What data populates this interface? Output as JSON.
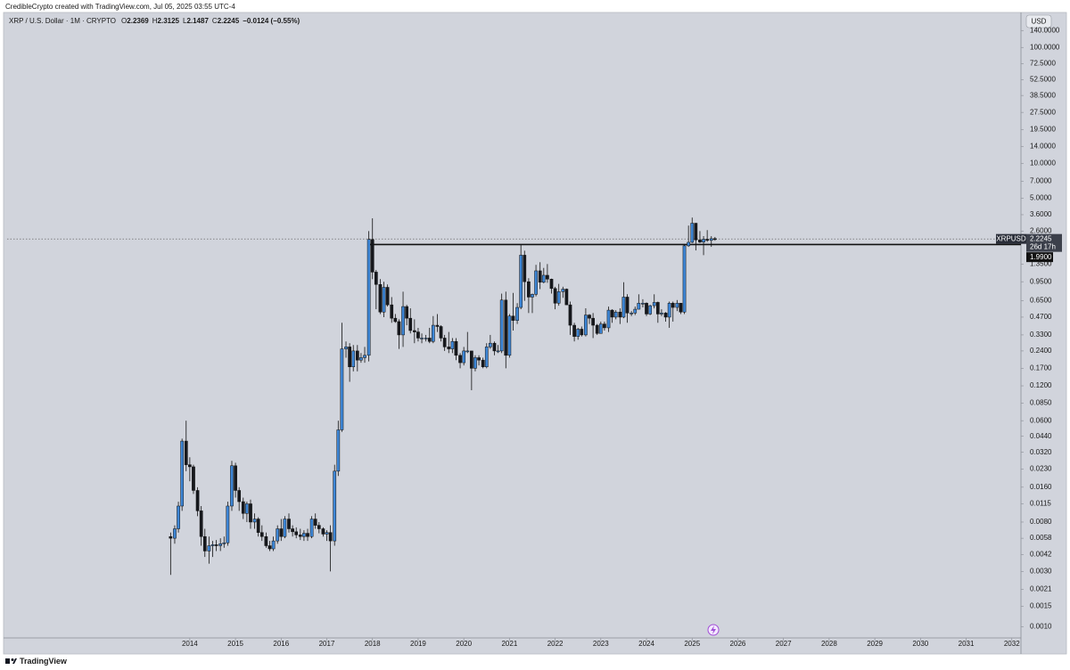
{
  "header": "CredibleCrypto created with TradingView.com, Jul 05, 2025 03:55 UTC-4",
  "footer": "TradingView",
  "chart_data": {
    "type": "candlestick",
    "legend_header": {
      "symbol": "XRP / U.S. Dollar · 1M · CRYPTO",
      "field_labels": [
        "O",
        "H",
        "L",
        "C"
      ],
      "change": "−0.0124 (−0.55%)"
    },
    "currency": "USD",
    "price_tag": {
      "symbol": "XRPUSD",
      "countdown": "26d 17h"
    },
    "hline": {
      "value": 1.99,
      "label": "1.9900"
    },
    "up_color": "#3d86d6",
    "down_color": "#16181d",
    "log_scale": true,
    "grid": false,
    "xlim": [
      2010,
      2032.2
    ],
    "xticks": [
      2014,
      2015,
      2016,
      2017,
      2018,
      2019,
      2020,
      2021,
      2022,
      2023,
      2024,
      2025,
      2026,
      2027,
      2028,
      2029,
      2030,
      2031,
      2032
    ],
    "ylim": [
      0.0008,
      190
    ],
    "yticks": [
      {
        "value": 140,
        "label": "140.0000"
      },
      {
        "value": 100,
        "label": "100.0000"
      },
      {
        "value": 72.5,
        "label": "72.5000"
      },
      {
        "value": 52.5,
        "label": "52.5000"
      },
      {
        "value": 38.5,
        "label": "38.5000"
      },
      {
        "value": 27.5,
        "label": "27.5000"
      },
      {
        "value": 19.5,
        "label": "19.5000"
      },
      {
        "value": 14,
        "label": "14.0000"
      },
      {
        "value": 10,
        "label": "10.0000"
      },
      {
        "value": 7,
        "label": "7.0000"
      },
      {
        "value": 5,
        "label": "5.0000"
      },
      {
        "value": 3.6,
        "label": "3.6000"
      },
      {
        "value": 2.6,
        "label": "2.6000"
      },
      {
        "value": 1.35,
        "label": "1.3500"
      },
      {
        "value": 0.95,
        "label": "0.9500"
      },
      {
        "value": 0.65,
        "label": "0.6500"
      },
      {
        "value": 0.47,
        "label": "0.4700"
      },
      {
        "value": 0.33,
        "label": "0.3300"
      },
      {
        "value": 0.24,
        "label": "0.2400"
      },
      {
        "value": 0.17,
        "label": "0.1700"
      },
      {
        "value": 0.12,
        "label": "0.1200"
      },
      {
        "value": 0.085,
        "label": "0.0850"
      },
      {
        "value": 0.06,
        "label": "0.0600"
      },
      {
        "value": 0.044,
        "label": "0.0440"
      },
      {
        "value": 0.032,
        "label": "0.0320"
      },
      {
        "value": 0.023,
        "label": "0.0230"
      },
      {
        "value": 0.016,
        "label": "0.0160"
      },
      {
        "value": 0.0115,
        "label": "0.0115"
      },
      {
        "value": 0.008,
        "label": "0.0080"
      },
      {
        "value": 0.0058,
        "label": "0.0058"
      },
      {
        "value": 0.0042,
        "label": "0.0042"
      },
      {
        "value": 0.003,
        "label": "0.0030"
      },
      {
        "value": 0.0021,
        "label": "0.0021"
      },
      {
        "value": 0.0015,
        "label": "0.0015"
      },
      {
        "value": 0.001,
        "label": "0.0010"
      }
    ],
    "x": [
      2013.58,
      2013.67,
      2013.75,
      2013.83,
      2013.92,
      2014,
      2014.08,
      2014.17,
      2014.25,
      2014.33,
      2014.42,
      2014.5,
      2014.58,
      2014.67,
      2014.75,
      2014.83,
      2014.92,
      2015,
      2015.08,
      2015.17,
      2015.25,
      2015.33,
      2015.42,
      2015.5,
      2015.58,
      2015.67,
      2015.75,
      2015.83,
      2015.92,
      2016,
      2016.08,
      2016.17,
      2016.25,
      2016.33,
      2016.42,
      2016.5,
      2016.58,
      2016.67,
      2016.75,
      2016.83,
      2016.92,
      2017,
      2017.08,
      2017.17,
      2017.25,
      2017.33,
      2017.42,
      2017.5,
      2017.58,
      2017.67,
      2017.75,
      2017.83,
      2017.92,
      2018,
      2018.08,
      2018.17,
      2018.25,
      2018.33,
      2018.42,
      2018.5,
      2018.58,
      2018.67,
      2018.75,
      2018.83,
      2018.92,
      2019,
      2019.08,
      2019.17,
      2019.25,
      2019.33,
      2019.42,
      2019.5,
      2019.58,
      2019.67,
      2019.75,
      2019.83,
      2019.92,
      2020,
      2020.08,
      2020.17,
      2020.25,
      2020.33,
      2020.42,
      2020.5,
      2020.58,
      2020.67,
      2020.75,
      2020.83,
      2020.92,
      2021,
      2021.08,
      2021.17,
      2021.25,
      2021.33,
      2021.42,
      2021.5,
      2021.58,
      2021.67,
      2021.75,
      2021.83,
      2021.92,
      2022,
      2022.08,
      2022.17,
      2022.25,
      2022.33,
      2022.42,
      2022.5,
      2022.58,
      2022.67,
      2022.75,
      2022.83,
      2022.92,
      2023,
      2023.08,
      2023.17,
      2023.25,
      2023.33,
      2023.42,
      2023.5,
      2023.58,
      2023.67,
      2023.75,
      2023.83,
      2023.92,
      2024,
      2024.08,
      2024.17,
      2024.25,
      2024.33,
      2024.42,
      2024.5,
      2024.58,
      2024.67,
      2024.75,
      2024.83,
      2024.92,
      2025,
      2025.08,
      2025.17,
      2025.25,
      2025.33,
      2025.42,
      2025.5
    ],
    "open": [
      0.006,
      0.0058,
      0.007,
      0.011,
      0.04,
      0.025,
      0.024,
      0.015,
      0.01,
      0.006,
      0.0045,
      0.005,
      0.0051,
      0.005,
      0.0052,
      0.0053,
      0.011,
      0.0245,
      0.015,
      0.012,
      0.0095,
      0.0115,
      0.008,
      0.0085,
      0.0065,
      0.006,
      0.005,
      0.0047,
      0.0055,
      0.007,
      0.006,
      0.0085,
      0.007,
      0.0066,
      0.0062,
      0.006,
      0.0064,
      0.006,
      0.0085,
      0.0075,
      0.007,
      0.0063,
      0.0065,
      0.0055,
      0.022,
      0.05,
      0.25,
      0.26,
      0.175,
      0.24,
      0.2,
      0.21,
      0.22,
      2.2,
      1.15,
      0.9,
      0.52,
      0.85,
      0.6,
      0.46,
      0.43,
      0.33,
      0.58,
      0.46,
      0.36,
      0.35,
      0.31,
      0.31,
      0.31,
      0.29,
      0.4,
      0.39,
      0.31,
      0.26,
      0.25,
      0.29,
      0.22,
      0.19,
      0.24,
      0.24,
      0.17,
      0.21,
      0.2,
      0.175,
      0.26,
      0.28,
      0.24,
      0.24,
      0.66,
      0.22,
      0.48,
      0.44,
      0.57,
      1.61,
      0.95,
      0.7,
      0.74,
      1.18,
      0.94,
      1.08,
      1,
      0.83,
      0.62,
      0.78,
      0.82,
      0.6,
      0.4,
      0.32,
      0.37,
      0.33,
      0.49,
      0.46,
      0.4,
      0.34,
      0.41,
      0.38,
      0.54,
      0.47,
      0.52,
      0.47,
      0.7,
      0.51,
      0.51,
      0.55,
      0.62,
      0.62,
      0.5,
      0.59,
      0.63,
      0.5,
      0.51,
      0.47,
      0.62,
      0.57,
      0.62,
      0.52,
      1.94,
      2.08,
      3.04,
      2.18,
      2.09,
      2.21,
      2.16,
      2.2369
    ],
    "high": [
      0.0065,
      0.0075,
      0.012,
      0.042,
      0.06,
      0.029,
      0.025,
      0.016,
      0.011,
      0.007,
      0.006,
      0.0055,
      0.0056,
      0.0058,
      0.006,
      0.012,
      0.027,
      0.026,
      0.016,
      0.013,
      0.012,
      0.0125,
      0.0095,
      0.0088,
      0.0075,
      0.0065,
      0.0055,
      0.006,
      0.0075,
      0.0085,
      0.009,
      0.0095,
      0.0075,
      0.0072,
      0.007,
      0.0068,
      0.007,
      0.009,
      0.0095,
      0.008,
      0.0072,
      0.0068,
      0.0075,
      0.025,
      0.06,
      0.42,
      0.29,
      0.28,
      0.27,
      0.27,
      0.23,
      0.26,
      2.6,
      3.35,
      1.2,
      1,
      0.95,
      0.9,
      0.7,
      0.5,
      0.45,
      0.78,
      0.6,
      0.56,
      0.45,
      0.38,
      0.34,
      0.33,
      0.38,
      0.48,
      0.5,
      0.4,
      0.33,
      0.35,
      0.31,
      0.31,
      0.23,
      0.26,
      0.35,
      0.24,
      0.22,
      0.22,
      0.21,
      0.28,
      0.33,
      0.29,
      0.27,
      0.75,
      0.78,
      0.5,
      0.76,
      0.62,
      1.98,
      1.76,
      1.02,
      0.75,
      1.33,
      1.4,
      1.25,
      1.35,
      1.01,
      0.86,
      0.91,
      0.86,
      0.83,
      0.64,
      0.42,
      0.38,
      0.39,
      0.56,
      0.5,
      0.51,
      0.41,
      0.43,
      0.43,
      0.58,
      0.55,
      0.54,
      0.56,
      0.94,
      0.74,
      0.53,
      0.58,
      0.74,
      0.67,
      0.63,
      0.6,
      0.74,
      0.64,
      0.55,
      0.52,
      0.64,
      0.64,
      0.66,
      0.62,
      1.98,
      2.9,
      3.4,
      3.05,
      2.6,
      2.35,
      2.65,
      2.35,
      2.3125
    ],
    "low": [
      0.0028,
      0.0052,
      0.0065,
      0.01,
      0.022,
      0.018,
      0.014,
      0.009,
      0.005,
      0.004,
      0.0035,
      0.004,
      0.0045,
      0.0045,
      0.0048,
      0.005,
      0.01,
      0.013,
      0.01,
      0.0085,
      0.008,
      0.007,
      0.007,
      0.006,
      0.0055,
      0.0048,
      0.0045,
      0.0045,
      0.0052,
      0.0055,
      0.0058,
      0.0065,
      0.006,
      0.0058,
      0.0056,
      0.0055,
      0.0055,
      0.0058,
      0.007,
      0.0064,
      0.006,
      0.0055,
      0.003,
      0.005,
      0.02,
      0.048,
      0.21,
      0.13,
      0.16,
      0.16,
      0.19,
      0.19,
      0.195,
      1,
      0.55,
      0.5,
      0.47,
      0.58,
      0.42,
      0.42,
      0.25,
      0.26,
      0.4,
      0.34,
      0.28,
      0.29,
      0.28,
      0.29,
      0.28,
      0.28,
      0.35,
      0.29,
      0.24,
      0.23,
      0.23,
      0.2,
      0.17,
      0.18,
      0.23,
      0.11,
      0.16,
      0.18,
      0.17,
      0.17,
      0.25,
      0.22,
      0.23,
      0.23,
      0.17,
      0.21,
      0.36,
      0.41,
      0.55,
      0.65,
      0.51,
      0.51,
      0.71,
      0.82,
      0.92,
      0.93,
      0.75,
      0.55,
      0.59,
      0.69,
      0.6,
      0.33,
      0.29,
      0.3,
      0.32,
      0.32,
      0.41,
      0.31,
      0.33,
      0.34,
      0.36,
      0.35,
      0.42,
      0.45,
      0.41,
      0.46,
      0.42,
      0.48,
      0.49,
      0.55,
      0.57,
      0.48,
      0.49,
      0.56,
      0.42,
      0.48,
      0.43,
      0.38,
      0.43,
      0.53,
      0.5,
      0.5,
      1.9,
      2.05,
      1.77,
      2.05,
      1.61,
      2.1,
      1.9,
      2.1487
    ],
    "close": [
      0.0058,
      0.007,
      0.011,
      0.04,
      0.025,
      0.024,
      0.015,
      0.01,
      0.006,
      0.0045,
      0.005,
      0.0051,
      0.005,
      0.0052,
      0.0053,
      0.011,
      0.0245,
      0.015,
      0.012,
      0.0095,
      0.0115,
      0.008,
      0.0085,
      0.0065,
      0.006,
      0.005,
      0.0047,
      0.0055,
      0.007,
      0.006,
      0.0085,
      0.007,
      0.0066,
      0.0062,
      0.006,
      0.0064,
      0.006,
      0.0085,
      0.0075,
      0.007,
      0.0063,
      0.0065,
      0.0055,
      0.022,
      0.05,
      0.25,
      0.26,
      0.175,
      0.24,
      0.2,
      0.21,
      0.22,
      2.2,
      1.15,
      0.9,
      0.52,
      0.85,
      0.6,
      0.46,
      0.43,
      0.33,
      0.58,
      0.46,
      0.36,
      0.35,
      0.31,
      0.31,
      0.31,
      0.29,
      0.4,
      0.39,
      0.31,
      0.26,
      0.25,
      0.29,
      0.22,
      0.19,
      0.24,
      0.24,
      0.17,
      0.21,
      0.2,
      0.175,
      0.26,
      0.28,
      0.24,
      0.24,
      0.66,
      0.22,
      0.48,
      0.44,
      0.57,
      1.61,
      0.95,
      0.7,
      0.74,
      1.18,
      0.94,
      1.08,
      1,
      0.83,
      0.62,
      0.78,
      0.82,
      0.6,
      0.4,
      0.32,
      0.37,
      0.33,
      0.49,
      0.46,
      0.4,
      0.34,
      0.41,
      0.38,
      0.54,
      0.47,
      0.52,
      0.47,
      0.7,
      0.51,
      0.51,
      0.55,
      0.62,
      0.62,
      0.5,
      0.59,
      0.63,
      0.5,
      0.51,
      0.47,
      0.62,
      0.57,
      0.62,
      0.52,
      1.94,
      2.08,
      3.04,
      2.18,
      2.09,
      2.21,
      2.16,
      2.2369,
      2.2245
    ]
  }
}
